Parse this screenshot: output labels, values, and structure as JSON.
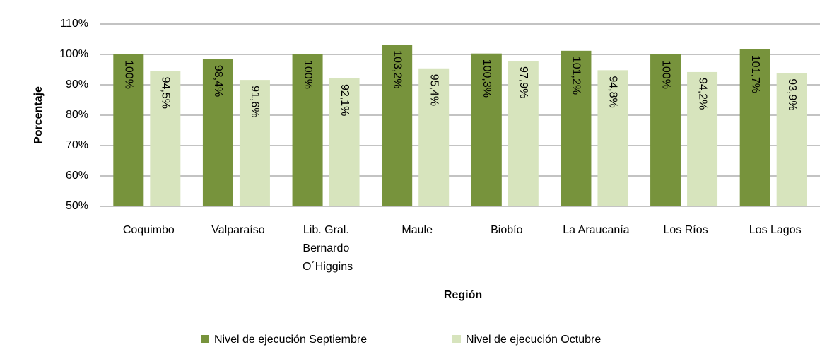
{
  "chart_data": {
    "type": "bar",
    "categories": [
      "Coquimbo",
      "Valparaíso",
      "Lib. Gral. Bernardo O´Higgins",
      "Maule",
      "Biobío",
      "La Araucanía",
      "Los Ríos",
      "Los Lagos"
    ],
    "series": [
      {
        "name": "Nivel de ejecución Septiembre",
        "color": "#77933c",
        "values": [
          100,
          98.4,
          100,
          103.2,
          100.3,
          101.2,
          100,
          101.7
        ],
        "value_labels": [
          "100%",
          "98,4%",
          "100%",
          "103,2%",
          "100,3%",
          "101,2%",
          "100%",
          "101,7%"
        ]
      },
      {
        "name": "Nivel de ejecución Octubre",
        "color": "#d7e4bd",
        "values": [
          94.5,
          91.6,
          92.1,
          95.4,
          97.9,
          94.8,
          94.2,
          93.9
        ],
        "value_labels": [
          "94,5%",
          "91,6%",
          "92,1%",
          "95,4%",
          "97,9%",
          "94,8%",
          "94,2%",
          "93,9%"
        ]
      }
    ],
    "xlabel": "Región",
    "ylabel": "Porcentaje",
    "ylim": [
      50,
      110
    ],
    "yticks": [
      {
        "value": 50,
        "label": "50%"
      },
      {
        "value": 60,
        "label": "60%"
      },
      {
        "value": 70,
        "label": "70%"
      },
      {
        "value": 80,
        "label": "80%"
      },
      {
        "value": 90,
        "label": "90%"
      },
      {
        "value": 100,
        "label": "100%"
      },
      {
        "value": 110,
        "label": "110%"
      }
    ],
    "grid": true,
    "legend": "bottom"
  }
}
